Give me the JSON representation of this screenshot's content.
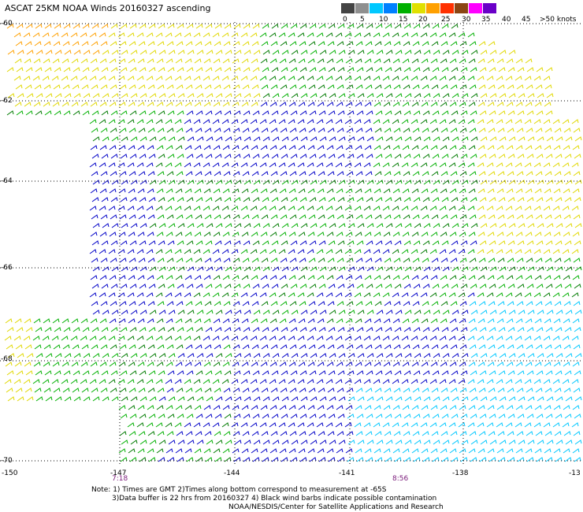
{
  "title": "ASCAT 25KM NOAA Winds 20160327 ascending",
  "legend": {
    "labels": [
      "0",
      "5",
      "10",
      "15",
      "20",
      "25",
      "30",
      "35",
      "40",
      "45",
      ">50 knots"
    ],
    "colors": [
      "#444444",
      "#8f8f8f",
      "#00c8ff",
      "#0080ff",
      "#00b000",
      "#e0e000",
      "#ffa000",
      "#ff3000",
      "#8b4513",
      "#ff00ff",
      "#6a00c8"
    ]
  },
  "axes": {
    "lat_labels": [
      "-60",
      "-62",
      "-64",
      "-66",
      "-68",
      "-70"
    ],
    "lon_labels": [
      "-150",
      "-147",
      "-144",
      "-141",
      "-138",
      "-13"
    ]
  },
  "times": [
    "7:18",
    "8:56"
  ],
  "notes": [
    "Note: 1) Times are GMT 2)Times along bottom correspond to measurement at -65S",
    "3)Data buffer is 22 hrs from 20160327 4) Black wind barbs indicate possible contamination",
    "NOAA/NESDIS/Center for Satellite Applications and Research"
  ],
  "colors": {
    "calm_green": "#00b000",
    "dark_green": "#007a00",
    "yellow": "#e0d800",
    "orange": "#ffa000",
    "blue": "#0000c8",
    "cyan": "#00c8ff",
    "grid": "#000000"
  }
}
